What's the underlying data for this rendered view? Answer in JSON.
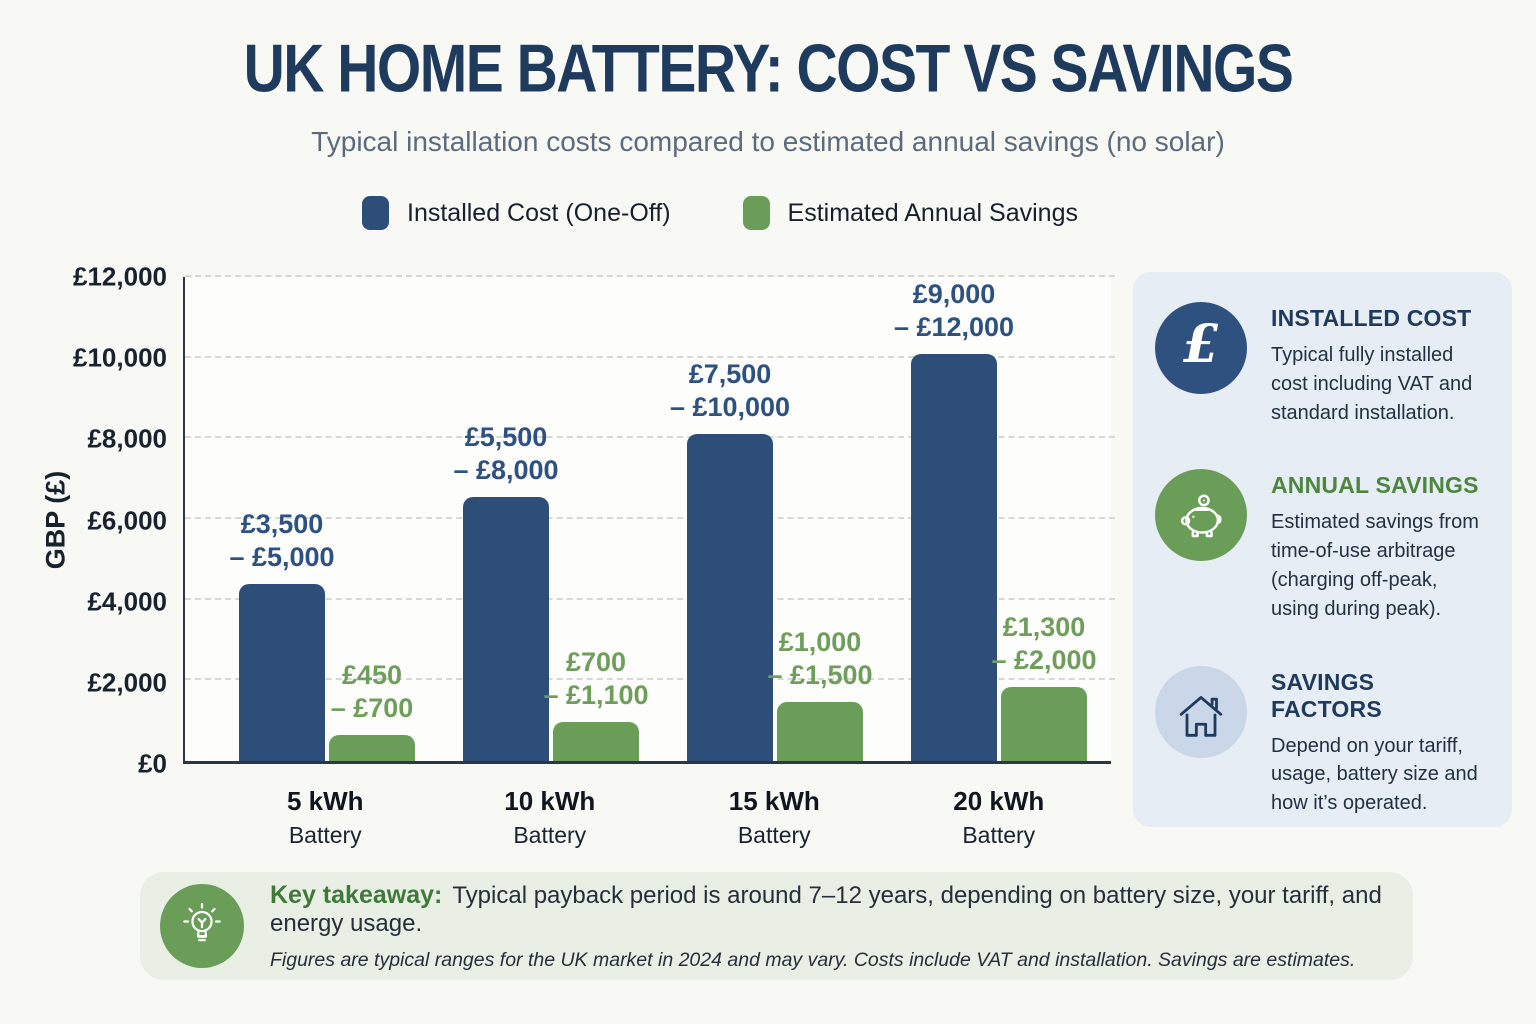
{
  "header": {
    "title": "UK HOME BATTERY: COST VS SAVINGS",
    "subtitle": "Typical installation costs compared to estimated annual savings (no solar)"
  },
  "icons": {
    "pound_glyph": "£"
  },
  "chart_data": {
    "type": "bar",
    "title": "UK HOME BATTERY: COST VS SAVINGS",
    "categories": [
      "5 kWh",
      "10 kWh",
      "15 kWh",
      "20 kWh"
    ],
    "category_sublabel": "Battery",
    "series": [
      {
        "name": "Installed Cost (One-Off)",
        "color": "#2e4e7a",
        "label_color": "#2d5181",
        "values": [
          4400,
          6550,
          8100,
          10100
        ],
        "range_labels": [
          [
            "£3,500",
            "– £5,000"
          ],
          [
            "£5,500",
            "– £8,000"
          ],
          [
            "£7,500",
            "– £10,000"
          ],
          [
            "£9,000",
            "– £12,000"
          ]
        ]
      },
      {
        "name": "Estimated Annual Savings",
        "color": "#6a9e58",
        "label_color": "#6f9e5c",
        "values": [
          650,
          960,
          1460,
          1830
        ],
        "range_labels": [
          [
            "£450",
            "– £700"
          ],
          [
            "£700",
            "– £1,100"
          ],
          [
            "£1,000",
            "– £1,500"
          ],
          [
            "£1,300",
            "– £2,000"
          ]
        ]
      }
    ],
    "ylabel": "GBP (£)",
    "ylim": [
      0,
      12000
    ],
    "yticks": [
      {
        "value": 0,
        "label": "£0"
      },
      {
        "value": 2000,
        "label": "£2,000"
      },
      {
        "value": 4000,
        "label": "£4,000"
      },
      {
        "value": 6000,
        "label": "£6,000"
      },
      {
        "value": 8000,
        "label": "£8,000"
      },
      {
        "value": 10000,
        "label": "£10,000"
      },
      {
        "value": 12000,
        "label": "£12,000"
      }
    ],
    "grid": "horizontal-dashed",
    "legend_position": "top"
  },
  "sidebar": {
    "items": [
      {
        "icon": "pound-icon",
        "icon_bg": "#2e5180",
        "title": "INSTALLED COST",
        "title_color": "#1e3a5c",
        "body": "Typical fully installed cost including VAT and standard installation."
      },
      {
        "icon": "piggy-bank-icon",
        "icon_bg": "#6a9e58",
        "title": "ANNUAL SAVINGS",
        "title_color": "#4e8540",
        "body": "Estimated savings from time-of-use arbitrage (charging off-peak, using during peak)."
      },
      {
        "icon": "house-icon",
        "icon_bg": "#c9d7e9",
        "title": "SAVINGS FACTORS",
        "title_color": "#1e3a5c",
        "body": "Depend on your tariff, usage, battery size and how it’s operated."
      }
    ]
  },
  "takeaway": {
    "icon": "lightbulb-icon",
    "icon_bg": "#6a9e58",
    "label": "Key takeaway:",
    "text": "Typical payback period is around 7–12 years, depending on battery size, your tariff, and energy usage.",
    "footnote": "Figures are typical ranges for the UK market in 2024 and may vary. Costs include VAT and installation. Savings are estimates."
  }
}
